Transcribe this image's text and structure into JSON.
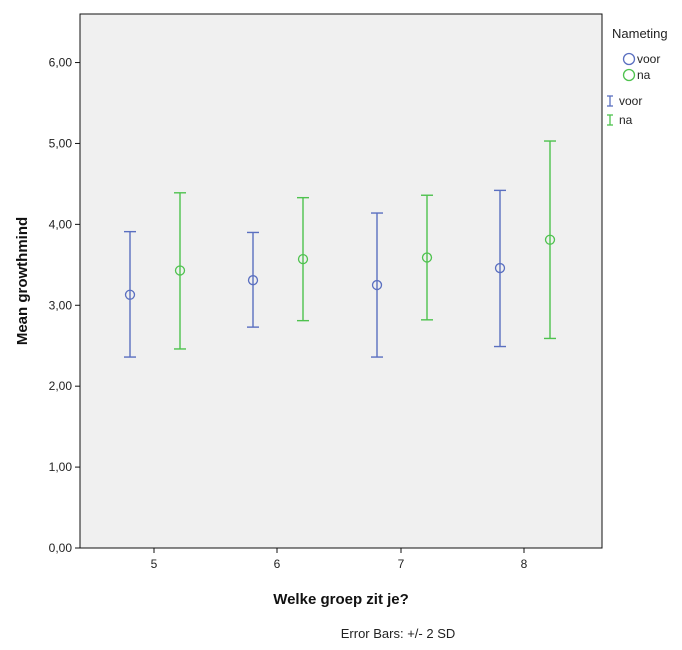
{
  "chart_data": {
    "type": "errorbar",
    "title": "",
    "xlabel": "Welke groep zit je?",
    "ylabel": "Mean growthmind",
    "categories": [
      "5",
      "6",
      "7",
      "8"
    ],
    "ylim": [
      0,
      6.6
    ],
    "yticks": [
      "0,00",
      "1,00",
      "2,00",
      "3,00",
      "4,00",
      "5,00",
      "6,00"
    ],
    "ytick_values": [
      0,
      1,
      2,
      3,
      4,
      5,
      6
    ],
    "grid": false,
    "legend_title": "Nameting",
    "legend_placement": "right",
    "legend_marker_entries": [
      "voor",
      "na"
    ],
    "legend_errorbar_entries": [
      "voor",
      "na"
    ],
    "footnote": "Error Bars: +/- 2 SD",
    "series": [
      {
        "name": "voor",
        "color": "#5a6fc0",
        "means": [
          3.13,
          3.31,
          3.25,
          3.46
        ],
        "lower": [
          2.36,
          2.73,
          2.36,
          2.49
        ],
        "upper": [
          3.91,
          3.9,
          4.14,
          4.42
        ]
      },
      {
        "name": "na",
        "color": "#4ec24e",
        "means": [
          3.43,
          3.57,
          3.59,
          3.81
        ],
        "lower": [
          2.46,
          2.81,
          2.82,
          2.59
        ],
        "upper": [
          4.39,
          4.33,
          4.36,
          5.03
        ]
      }
    ]
  }
}
